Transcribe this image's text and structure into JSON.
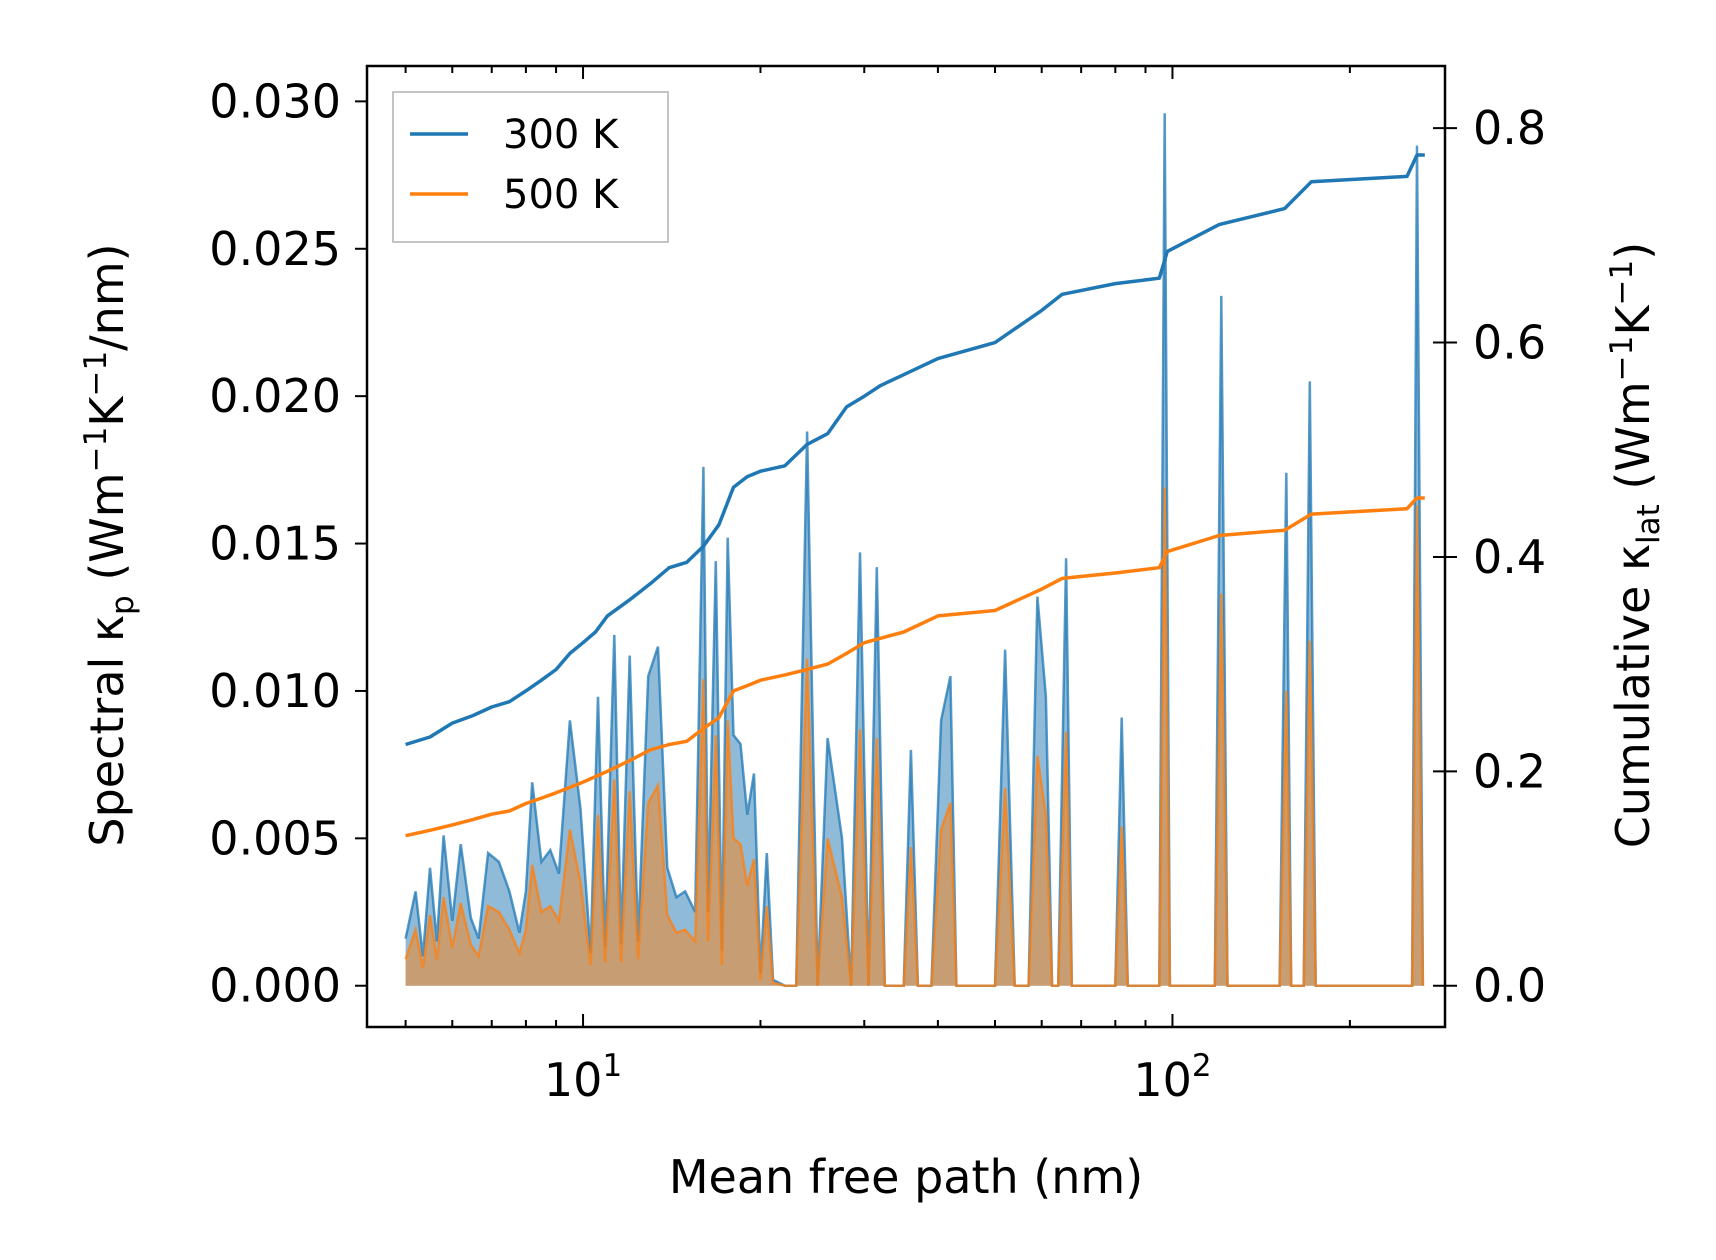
{
  "chart_data": {
    "type": "line",
    "x_scale": "log",
    "xlim": [
      4.3,
      290
    ],
    "xlabel": "Mean free path (nm)",
    "x_ticks": [
      {
        "value": 10,
        "base": "10",
        "exp": "1"
      },
      {
        "value": 100,
        "base": "10",
        "exp": "2"
      }
    ],
    "y_left": {
      "label_parts": {
        "pre": "Spectral κ",
        "sub": "p",
        "mid": " (Wm",
        "sup1": "−1",
        "k": "K",
        "sup2": "−1",
        "post": "/nm)"
      },
      "lim": [
        -0.0014,
        0.0312
      ],
      "ticks": [
        "0.000",
        "0.005",
        "0.010",
        "0.015",
        "0.020",
        "0.025",
        "0.030"
      ]
    },
    "y_right": {
      "label_parts": {
        "pre": "Cumulative κ",
        "sub": "lat",
        "mid": " (Wm",
        "sup1": "−1",
        "k": "K",
        "sup2": "−1",
        "post": ")"
      },
      "lim": [
        -0.0385,
        0.858
      ],
      "ticks": [
        "0.0",
        "0.2",
        "0.4",
        "0.6",
        "0.8"
      ]
    },
    "legend": {
      "position": "top-left",
      "entries": [
        "300 K",
        "500 K"
      ]
    },
    "series": [
      {
        "name": "300 K spectral",
        "axis": "left",
        "color": "#1f77b4",
        "fill_color": "#1f77b4",
        "points": [
          [
            5.0,
            0.0016
          ],
          [
            5.2,
            0.0032
          ],
          [
            5.35,
            0.001
          ],
          [
            5.5,
            0.004
          ],
          [
            5.65,
            0.0015
          ],
          [
            5.8,
            0.0051
          ],
          [
            6.0,
            0.0022
          ],
          [
            6.2,
            0.0048
          ],
          [
            6.45,
            0.0023
          ],
          [
            6.65,
            0.0016
          ],
          [
            6.9,
            0.0045
          ],
          [
            7.2,
            0.0042
          ],
          [
            7.5,
            0.0032
          ],
          [
            7.8,
            0.0018
          ],
          [
            8.0,
            0.0032
          ],
          [
            8.2,
            0.0069
          ],
          [
            8.5,
            0.0042
          ],
          [
            8.8,
            0.0046
          ],
          [
            9.1,
            0.0038
          ],
          [
            9.5,
            0.009
          ],
          [
            9.9,
            0.006
          ],
          [
            10.3,
            0.0011
          ],
          [
            10.6,
            0.0098
          ],
          [
            10.9,
            0.0013
          ],
          [
            11.3,
            0.0119
          ],
          [
            11.6,
            0.0014
          ],
          [
            12.0,
            0.0112
          ],
          [
            12.4,
            0.0015
          ],
          [
            12.9,
            0.0105
          ],
          [
            13.4,
            0.0115
          ],
          [
            13.9,
            0.004
          ],
          [
            14.4,
            0.003
          ],
          [
            14.9,
            0.0032
          ],
          [
            15.5,
            0.0025
          ],
          [
            16.0,
            0.0176
          ],
          [
            16.3,
            0.0025
          ],
          [
            16.8,
            0.0144
          ],
          [
            17.2,
            0.0012
          ],
          [
            17.6,
            0.0152
          ],
          [
            18.0,
            0.0085
          ],
          [
            18.5,
            0.0082
          ],
          [
            19.0,
            0.0058
          ],
          [
            19.5,
            0.0072
          ],
          [
            20.0,
            0.0004
          ],
          [
            20.5,
            0.0045
          ],
          [
            21.0,
            0.0002
          ],
          [
            22.0,
            0.0
          ],
          [
            23.0,
            0.0
          ],
          [
            24.0,
            0.0188
          ],
          [
            25.0,
            0.0
          ],
          [
            26.0,
            0.0084
          ],
          [
            27.5,
            0.005
          ],
          [
            28.5,
            0.0
          ],
          [
            29.5,
            0.0147
          ],
          [
            30.5,
            0.0
          ],
          [
            31.5,
            0.0142
          ],
          [
            32.5,
            0.0
          ],
          [
            35.0,
            0.0
          ],
          [
            36.0,
            0.008
          ],
          [
            37.0,
            0.0
          ],
          [
            39.0,
            0.0
          ],
          [
            40.5,
            0.009
          ],
          [
            42.0,
            0.0105
          ],
          [
            43.0,
            0.0
          ],
          [
            50.0,
            0.0
          ],
          [
            52.0,
            0.0114
          ],
          [
            54.0,
            0.0
          ],
          [
            57.0,
            0.0
          ],
          [
            59.0,
            0.0132
          ],
          [
            61.0,
            0.0098
          ],
          [
            62.5,
            0.0
          ],
          [
            64.0,
            0.0
          ],
          [
            66.0,
            0.0145
          ],
          [
            67.5,
            0.0
          ],
          [
            80.0,
            0.0
          ],
          [
            82.0,
            0.0091
          ],
          [
            84.0,
            0.0
          ],
          [
            95.0,
            0.0
          ],
          [
            97.0,
            0.0296
          ],
          [
            99.0,
            0.0
          ],
          [
            118.0,
            0.0
          ],
          [
            121.0,
            0.0234
          ],
          [
            124.0,
            0.0
          ],
          [
            152.0,
            0.0
          ],
          [
            156.0,
            0.0174
          ],
          [
            159.0,
            0.0
          ],
          [
            167.0,
            0.0
          ],
          [
            171.0,
            0.0205
          ],
          [
            175.0,
            0.0
          ],
          [
            255.0,
            0.0
          ],
          [
            260.0,
            0.0285
          ],
          [
            266.0,
            0.0
          ]
        ]
      },
      {
        "name": "500 K spectral",
        "axis": "left",
        "color": "#ff7f0e",
        "fill_color": "#ff7f0e",
        "points": [
          [
            5.0,
            0.0009
          ],
          [
            5.2,
            0.0019
          ],
          [
            5.35,
            0.0006
          ],
          [
            5.5,
            0.0024
          ],
          [
            5.65,
            0.0009
          ],
          [
            5.8,
            0.003
          ],
          [
            6.0,
            0.0013
          ],
          [
            6.2,
            0.0028
          ],
          [
            6.45,
            0.0014
          ],
          [
            6.65,
            0.001
          ],
          [
            6.9,
            0.0027
          ],
          [
            7.2,
            0.0025
          ],
          [
            7.5,
            0.0019
          ],
          [
            7.8,
            0.0011
          ],
          [
            8.0,
            0.0019
          ],
          [
            8.2,
            0.0041
          ],
          [
            8.5,
            0.0025
          ],
          [
            8.8,
            0.0027
          ],
          [
            9.1,
            0.0022
          ],
          [
            9.5,
            0.0053
          ],
          [
            9.9,
            0.0035
          ],
          [
            10.3,
            0.0007
          ],
          [
            10.6,
            0.0058
          ],
          [
            10.9,
            0.0008
          ],
          [
            11.3,
            0.007
          ],
          [
            11.6,
            0.0008
          ],
          [
            12.0,
            0.0066
          ],
          [
            12.4,
            0.0009
          ],
          [
            12.9,
            0.0062
          ],
          [
            13.4,
            0.0068
          ],
          [
            13.9,
            0.0024
          ],
          [
            14.4,
            0.0018
          ],
          [
            14.9,
            0.0019
          ],
          [
            15.5,
            0.0015
          ],
          [
            16.0,
            0.0104
          ],
          [
            16.3,
            0.0015
          ],
          [
            16.8,
            0.0085
          ],
          [
            17.2,
            0.0007
          ],
          [
            17.6,
            0.009
          ],
          [
            18.0,
            0.005
          ],
          [
            18.5,
            0.0048
          ],
          [
            19.0,
            0.0034
          ],
          [
            19.5,
            0.0043
          ],
          [
            20.0,
            0.0002
          ],
          [
            20.5,
            0.0027
          ],
          [
            21.0,
            0.0001
          ],
          [
            22.0,
            0.0
          ],
          [
            23.0,
            0.0
          ],
          [
            24.0,
            0.0111
          ],
          [
            25.0,
            0.0
          ],
          [
            26.0,
            0.005
          ],
          [
            27.5,
            0.003
          ],
          [
            28.5,
            0.0
          ],
          [
            29.5,
            0.0087
          ],
          [
            30.5,
            0.0
          ],
          [
            31.5,
            0.0084
          ],
          [
            32.5,
            0.0
          ],
          [
            35.0,
            0.0
          ],
          [
            36.0,
            0.0047
          ],
          [
            37.0,
            0.0
          ],
          [
            39.0,
            0.0
          ],
          [
            40.5,
            0.0053
          ],
          [
            42.0,
            0.0062
          ],
          [
            43.0,
            0.0
          ],
          [
            50.0,
            0.0
          ],
          [
            52.0,
            0.0067
          ],
          [
            54.0,
            0.0
          ],
          [
            57.0,
            0.0
          ],
          [
            59.0,
            0.0078
          ],
          [
            61.0,
            0.0058
          ],
          [
            62.5,
            0.0
          ],
          [
            64.0,
            0.0
          ],
          [
            66.0,
            0.0086
          ],
          [
            67.5,
            0.0
          ],
          [
            80.0,
            0.0
          ],
          [
            82.0,
            0.0054
          ],
          [
            84.0,
            0.0
          ],
          [
            95.0,
            0.0
          ],
          [
            97.0,
            0.0169
          ],
          [
            99.0,
            0.0
          ],
          [
            118.0,
            0.0
          ],
          [
            121.0,
            0.0133
          ],
          [
            124.0,
            0.0
          ],
          [
            152.0,
            0.0
          ],
          [
            156.0,
            0.01
          ],
          [
            159.0,
            0.0
          ],
          [
            167.0,
            0.0
          ],
          [
            171.0,
            0.0117
          ],
          [
            175.0,
            0.0
          ],
          [
            255.0,
            0.0
          ],
          [
            260.0,
            0.0163
          ],
          [
            266.0,
            0.0
          ]
        ]
      },
      {
        "name": "300 K",
        "axis": "right",
        "color": "#1f77b4",
        "points": [
          [
            5.0,
            0.225
          ],
          [
            5.5,
            0.232
          ],
          [
            6.0,
            0.245
          ],
          [
            6.5,
            0.252
          ],
          [
            7.0,
            0.26
          ],
          [
            7.5,
            0.265
          ],
          [
            8.0,
            0.275
          ],
          [
            8.5,
            0.285
          ],
          [
            9.0,
            0.295
          ],
          [
            9.5,
            0.31
          ],
          [
            10.0,
            0.32
          ],
          [
            10.5,
            0.33
          ],
          [
            11.0,
            0.345
          ],
          [
            12.0,
            0.36
          ],
          [
            13.0,
            0.375
          ],
          [
            14.0,
            0.39
          ],
          [
            15.0,
            0.395
          ],
          [
            16.0,
            0.41
          ],
          [
            17.0,
            0.43
          ],
          [
            18.0,
            0.465
          ],
          [
            19.0,
            0.475
          ],
          [
            20.0,
            0.48
          ],
          [
            22.0,
            0.485
          ],
          [
            24.0,
            0.505
          ],
          [
            26.0,
            0.515
          ],
          [
            28.0,
            0.54
          ],
          [
            30.0,
            0.55
          ],
          [
            32.0,
            0.56
          ],
          [
            35.0,
            0.57
          ],
          [
            40.0,
            0.585
          ],
          [
            50.0,
            0.6
          ],
          [
            60.0,
            0.63
          ],
          [
            65.0,
            0.645
          ],
          [
            80.0,
            0.655
          ],
          [
            95.0,
            0.66
          ],
          [
            98.0,
            0.685
          ],
          [
            120.0,
            0.71
          ],
          [
            155.0,
            0.725
          ],
          [
            172.0,
            0.75
          ],
          [
            250.0,
            0.755
          ],
          [
            260.0,
            0.775
          ],
          [
            268.0,
            0.775
          ]
        ]
      },
      {
        "name": "500 K",
        "axis": "right",
        "color": "#ff7f0e",
        "points": [
          [
            5.0,
            0.14
          ],
          [
            5.5,
            0.145
          ],
          [
            6.0,
            0.15
          ],
          [
            6.5,
            0.155
          ],
          [
            7.0,
            0.16
          ],
          [
            7.5,
            0.163
          ],
          [
            8.0,
            0.17
          ],
          [
            8.5,
            0.175
          ],
          [
            9.0,
            0.18
          ],
          [
            9.5,
            0.185
          ],
          [
            10.0,
            0.19
          ],
          [
            11.0,
            0.2
          ],
          [
            12.0,
            0.21
          ],
          [
            13.0,
            0.22
          ],
          [
            14.0,
            0.225
          ],
          [
            15.0,
            0.228
          ],
          [
            16.0,
            0.24
          ],
          [
            17.0,
            0.25
          ],
          [
            18.0,
            0.275
          ],
          [
            19.0,
            0.28
          ],
          [
            20.0,
            0.285
          ],
          [
            22.0,
            0.29
          ],
          [
            24.0,
            0.295
          ],
          [
            26.0,
            0.3
          ],
          [
            28.0,
            0.31
          ],
          [
            30.0,
            0.32
          ],
          [
            35.0,
            0.33
          ],
          [
            40.0,
            0.345
          ],
          [
            50.0,
            0.35
          ],
          [
            60.0,
            0.37
          ],
          [
            65.0,
            0.38
          ],
          [
            80.0,
            0.385
          ],
          [
            95.0,
            0.39
          ],
          [
            98.0,
            0.405
          ],
          [
            120.0,
            0.42
          ],
          [
            155.0,
            0.425
          ],
          [
            172.0,
            0.44
          ],
          [
            250.0,
            0.445
          ],
          [
            260.0,
            0.455
          ],
          [
            268.0,
            0.455
          ]
        ]
      }
    ]
  }
}
